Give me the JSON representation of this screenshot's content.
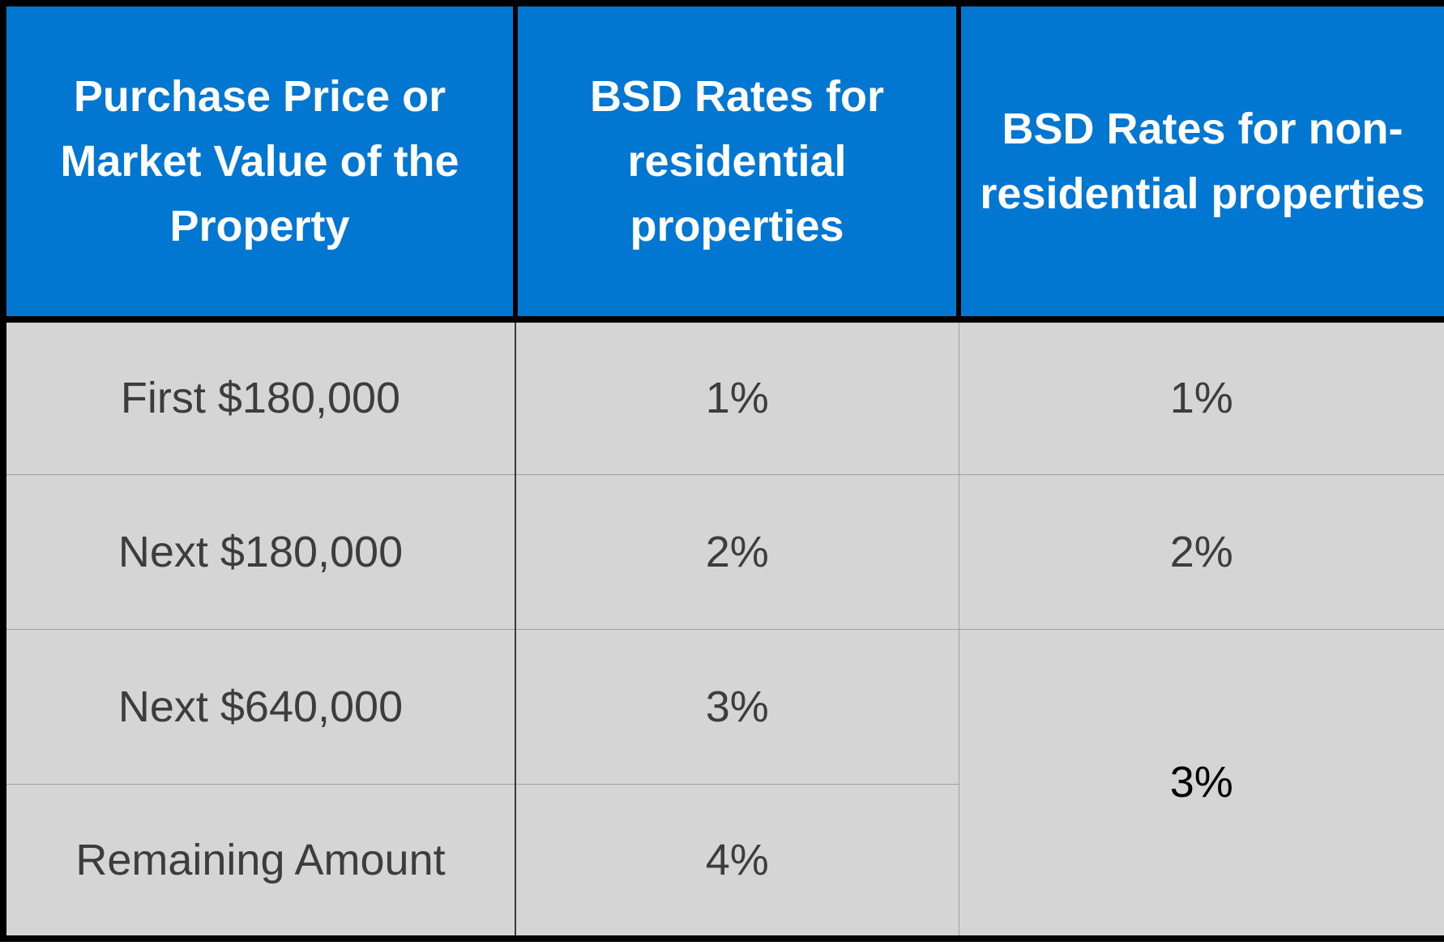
{
  "headers": [
    "Purchase Price or Market Value of the Property",
    "BSD Rates for residential properties",
    "BSD Rates for non-residential properties"
  ],
  "rows": [
    {
      "bracket": "First $180,000",
      "residential": "1%",
      "non_residential": "1%"
    },
    {
      "bracket": "Next $180,000",
      "residential": "2%",
      "non_residential": "2%"
    },
    {
      "bracket": "Next $640,000",
      "residential": "3%"
    },
    {
      "bracket": "Remaining Amount",
      "residential": "4%"
    }
  ],
  "merged_non_residential": "3%",
  "colors": {
    "header_bg": "#0277d2",
    "header_text": "#ffffff",
    "cell_bg": "#d5d5d5",
    "cell_text": "#3d3d3d",
    "border": "#000000"
  }
}
